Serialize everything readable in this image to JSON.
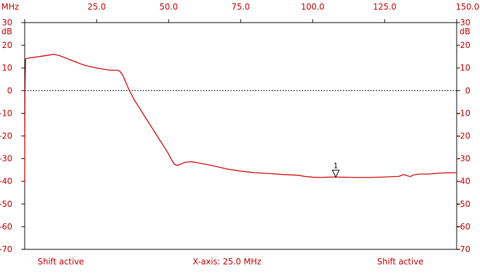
{
  "colors": {
    "trace": "#cc0000",
    "text": "#c00000",
    "axis": "#000000",
    "zero_line": "#000000"
  },
  "chart_data": {
    "type": "line",
    "x_unit": "MHz",
    "y_unit": "dB",
    "xlim": [
      0,
      150
    ],
    "ylim": [
      -70,
      30
    ],
    "x_ticks": [
      0,
      25,
      50,
      75,
      100,
      125,
      150
    ],
    "x_tick_labels": [
      "",
      "25.0",
      "50.0",
      "75.0",
      "100.0",
      "125.0",
      "150.0"
    ],
    "y_ticks": [
      30,
      20,
      10,
      0,
      -10,
      -20,
      -30,
      -40,
      -50,
      -60,
      -70
    ],
    "y_tick_labels": [
      "30",
      "20",
      "10",
      "0",
      "-10",
      "-20",
      "-30",
      "-40",
      "-50",
      "-60",
      "-70"
    ],
    "zero_line": true,
    "grid": false,
    "series": [
      {
        "x": [
          0,
          0.1,
          0.3,
          2,
          5,
          8,
          10,
          12,
          15,
          18,
          20,
          23,
          25,
          28,
          30,
          32,
          33,
          34,
          35,
          36,
          38,
          40,
          42,
          44,
          46,
          48,
          50,
          51,
          52,
          53,
          54,
          55,
          56,
          58,
          60,
          63,
          66,
          70,
          75,
          80,
          85,
          90,
          95,
          97,
          100,
          103,
          105,
          108,
          110,
          115,
          120,
          125,
          130,
          131.5,
          133,
          134,
          135,
          137,
          140,
          145,
          150
        ],
        "y": [
          -41,
          0,
          14,
          14.5,
          15,
          15.6,
          16,
          15.5,
          14,
          12.5,
          11.5,
          10.5,
          10,
          9.3,
          9,
          9,
          8.6,
          7,
          4,
          1,
          -4,
          -8,
          -12,
          -16,
          -20,
          -24,
          -28,
          -30.5,
          -32.5,
          -33,
          -32.5,
          -32,
          -31.5,
          -31.4,
          -31.8,
          -32.5,
          -33.3,
          -34.5,
          -35.5,
          -36.2,
          -36.6,
          -37,
          -37.3,
          -37.8,
          -38.2,
          -38.3,
          -38.2,
          -38.1,
          -38.2,
          -38.3,
          -38.3,
          -38.1,
          -37.8,
          -37,
          -37.6,
          -37.9,
          -37.2,
          -36.8,
          -36.8,
          -36.3,
          -36.2
        ]
      }
    ],
    "markers": [
      {
        "label": "1",
        "x": 108,
        "y": -38.1
      }
    ],
    "annotations": {
      "left": "Shift active",
      "center": "X-axis: 25.0 MHz",
      "right": "Shift active"
    }
  }
}
